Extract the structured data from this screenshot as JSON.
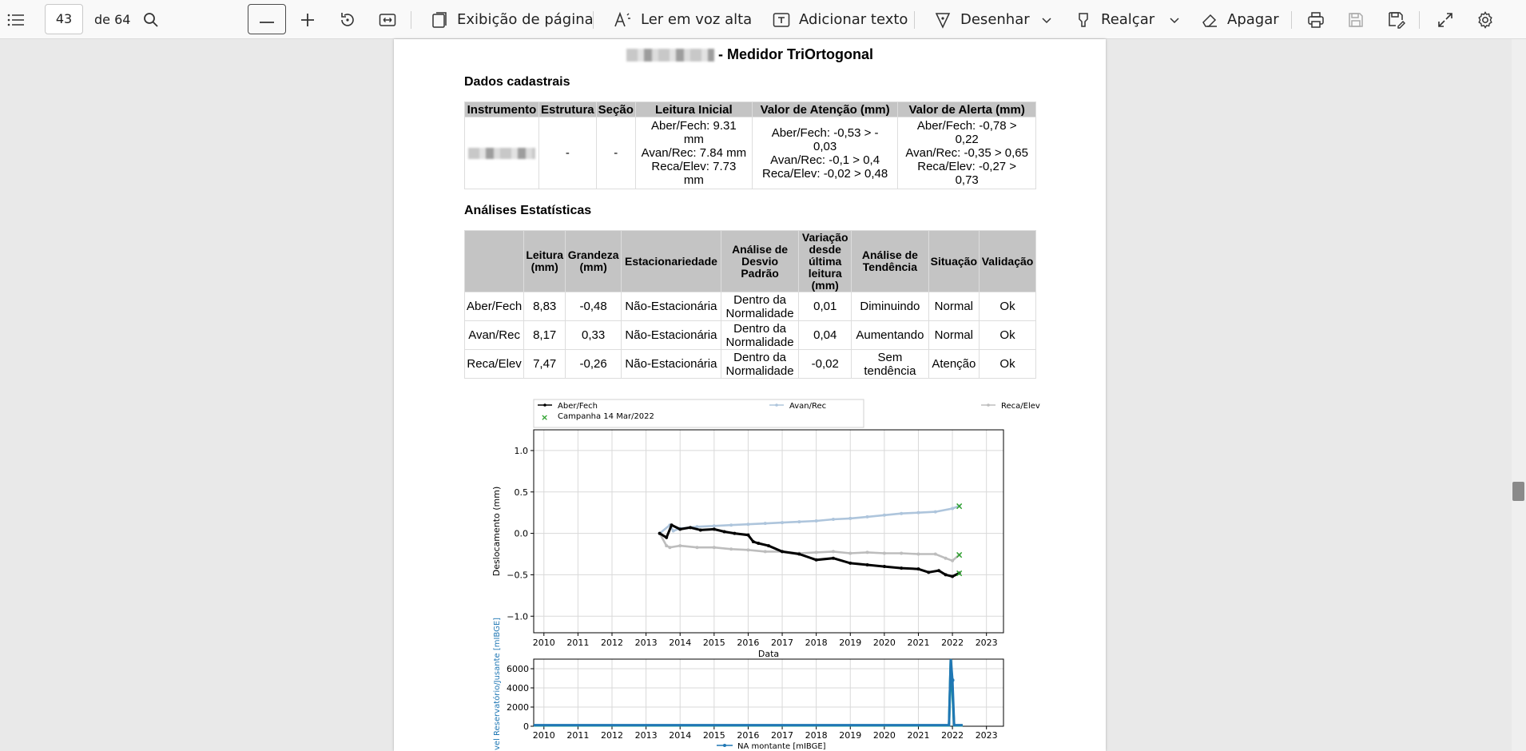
{
  "toolbar": {
    "contents_icon": "contents-list-icon",
    "page_number": "43",
    "page_total": "de 64",
    "search_icon": "search-icon",
    "zoom_out_icon": "minus-icon",
    "zoom_in_icon": "plus-icon",
    "rotate_icon": "rotate-icon",
    "fit_width_icon": "fit-width-icon",
    "page_view_label": "Exibição de página",
    "read_aloud_label": "Ler em voz alta",
    "add_text_label": "Adicionar texto",
    "draw_label": "Desenhar",
    "highlight_label": "Realçar",
    "erase_label": "Apagar",
    "print_icon": "printer-icon",
    "save_icon": "save-icon",
    "save_as_icon": "save-as-icon",
    "fullscreen_icon": "expand-icon",
    "settings_icon": "gear-icon"
  },
  "document": {
    "title_suffix": "- Medidor TriOrtogonal",
    "section_registration": "Dados cadastrais",
    "registration_table": {
      "headers": [
        "Instrumento",
        "Estrutura",
        "Seção",
        "Leitura Inicial",
        "Valor de Atenção (mm)",
        "Valor de Alerta (mm)"
      ],
      "row": {
        "estrutura": "-",
        "secao": "-",
        "leitura_inicial": [
          "Aber/Fech: 9.31",
          "mm",
          "Avan/Rec: 7.84 mm",
          "Reca/Elev: 7.73",
          "mm"
        ],
        "valor_atencao": [
          "Aber/Fech: -0,53 > -",
          "0,03",
          "Avan/Rec: -0,1 > 0,4",
          "Reca/Elev: -0,02 > 0,48"
        ],
        "valor_alerta": [
          "Aber/Fech: -0,78 >",
          "0,22",
          "Avan/Rec: -0,35 > 0,65",
          "Reca/Elev: -0,27 >",
          "0,73"
        ]
      }
    },
    "section_stats": "Análises Estatísticas",
    "stats_table": {
      "headers": [
        "",
        "Leitura (mm)",
        "Grandeza (mm)",
        "Estacionariedade",
        "Análise de Desvio Padrão",
        "Variação desde última leitura (mm)",
        "Análise de Tendência",
        "Situação",
        "Validação"
      ],
      "rows": [
        [
          "Aber/Fech",
          "8,83",
          "-0,48",
          "Não-Estacionária",
          "Dentro da Normalidade",
          "0,01",
          "Diminuindo",
          "Normal",
          "Ok"
        ],
        [
          "Avan/Rec",
          "8,17",
          "0,33",
          "Não-Estacionária",
          "Dentro da Normalidade",
          "0,04",
          "Aumentando",
          "Normal",
          "Ok"
        ],
        [
          "Reca/Elev",
          "7,47",
          "-0,26",
          "Não-Estacionária",
          "Dentro da Normalidade",
          "-0,02",
          "Sem tendência",
          "Atenção",
          "Ok"
        ]
      ]
    }
  },
  "chart_data": [
    {
      "type": "line",
      "xlabel": "Data",
      "ylabel": "Deslocamento (mm)",
      "xlim": [
        2009.7,
        2023.5
      ],
      "ylim": [
        -1.2,
        1.25
      ],
      "x_ticks": [
        "2010",
        "2011",
        "2012",
        "2013",
        "2014",
        "2015",
        "2016",
        "2017",
        "2018",
        "2019",
        "2020",
        "2021",
        "2022",
        "2023"
      ],
      "y_ticks": [
        "1.0",
        "0.5",
        "0.0",
        "−0.5",
        "−1.0"
      ],
      "grid": true,
      "legend_position": "top",
      "series": [
        {
          "name": "Aber/Fech",
          "color": "#000000",
          "x": [
            2013.4,
            2013.6,
            2013.75,
            2014.0,
            2014.3,
            2014.6,
            2015.0,
            2015.3,
            2015.6,
            2016.0,
            2016.15,
            2016.3,
            2016.6,
            2017.0,
            2017.5,
            2018.0,
            2018.5,
            2019.0,
            2019.5,
            2020.0,
            2020.5,
            2021.0,
            2021.3,
            2021.6,
            2021.8,
            2022.0,
            2022.2
          ],
          "y": [
            0.0,
            -0.05,
            0.1,
            0.05,
            0.07,
            0.04,
            0.05,
            0.02,
            0.0,
            -0.02,
            -0.1,
            -0.12,
            -0.15,
            -0.22,
            -0.25,
            -0.32,
            -0.3,
            -0.36,
            -0.38,
            -0.4,
            -0.42,
            -0.43,
            -0.47,
            -0.45,
            -0.5,
            -0.52,
            -0.48
          ]
        },
        {
          "name": "Avan/Rec",
          "color": "#aec5dc",
          "x": [
            2013.4,
            2013.7,
            2013.8,
            2014.0,
            2014.5,
            2015.0,
            2015.5,
            2016.0,
            2016.5,
            2017.0,
            2017.5,
            2018.0,
            2018.5,
            2019.0,
            2019.5,
            2020.0,
            2020.5,
            2021.0,
            2021.5,
            2022.0,
            2022.2
          ],
          "y": [
            0.0,
            0.1,
            0.03,
            0.06,
            0.08,
            0.09,
            0.1,
            0.11,
            0.12,
            0.13,
            0.14,
            0.15,
            0.17,
            0.18,
            0.2,
            0.22,
            0.24,
            0.25,
            0.26,
            0.3,
            0.33
          ]
        },
        {
          "name": "Reca/Elev",
          "color": "#bdbdbd",
          "x": [
            2013.4,
            2013.6,
            2013.7,
            2014.0,
            2014.5,
            2015.0,
            2015.5,
            2016.0,
            2016.5,
            2017.0,
            2017.5,
            2018.0,
            2018.5,
            2019.0,
            2019.5,
            2020.0,
            2020.5,
            2021.0,
            2021.5,
            2021.8,
            2022.0,
            2022.2
          ],
          "y": [
            0.0,
            -0.15,
            -0.17,
            -0.15,
            -0.17,
            -0.17,
            -0.19,
            -0.2,
            -0.22,
            -0.22,
            -0.24,
            -0.23,
            -0.22,
            -0.24,
            -0.23,
            -0.24,
            -0.24,
            -0.25,
            -0.25,
            -0.3,
            -0.33,
            -0.26
          ]
        }
      ],
      "markers": {
        "name": "Campanha 14 Mar/2022",
        "color": "#2ca02c",
        "x": [
          2022.2,
          2022.2,
          2022.2
        ],
        "y": [
          0.33,
          -0.26,
          -0.48
        ]
      }
    },
    {
      "type": "line",
      "ylabel": "vel Reservatório/Jusante [mIBGE]",
      "xlim": [
        2009.7,
        2023.5
      ],
      "ylim": [
        0,
        7000
      ],
      "x_ticks": [
        "2010",
        "2011",
        "2012",
        "2013",
        "2014",
        "2015",
        "2016",
        "2017",
        "2018",
        "2019",
        "2020",
        "2021",
        "2022",
        "2023"
      ],
      "y_ticks": [
        "6000",
        "4000",
        "2000",
        "0"
      ],
      "grid": true,
      "series": [
        {
          "name": "NA montante [mIBGE]",
          "color": "#1f77b4",
          "x": [
            2009.7,
            2021.9,
            2021.95,
            2022.0,
            2022.05,
            2022.3
          ],
          "y": [
            120,
            120,
            7000,
            4800,
            120,
            120
          ]
        },
        {
          "name": "",
          "color": "#17a589",
          "x": [
            2009.7,
            2021.9,
            2021.95,
            2022.05,
            2022.3
          ],
          "y": [
            80,
            80,
            7000,
            80,
            80
          ]
        }
      ]
    }
  ]
}
